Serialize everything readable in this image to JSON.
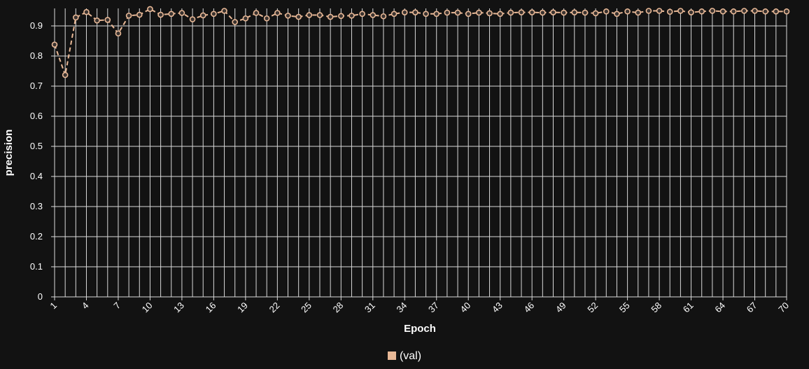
{
  "chart_data": {
    "type": "line",
    "xlabel": "Epoch",
    "ylabel": "precision",
    "x": [
      1,
      2,
      3,
      4,
      5,
      6,
      7,
      8,
      9,
      10,
      11,
      12,
      13,
      14,
      15,
      16,
      17,
      18,
      19,
      20,
      21,
      22,
      23,
      24,
      25,
      26,
      27,
      28,
      29,
      30,
      31,
      32,
      33,
      34,
      35,
      36,
      37,
      38,
      39,
      40,
      41,
      42,
      43,
      44,
      45,
      46,
      47,
      48,
      49,
      50,
      51,
      52,
      53,
      54,
      55,
      56,
      57,
      58,
      59,
      60,
      61,
      62,
      63,
      64,
      65,
      66,
      67,
      68,
      69,
      70
    ],
    "x_tick_labels": [
      "1",
      "4",
      "7",
      "10",
      "13",
      "16",
      "19",
      "22",
      "25",
      "28",
      "31",
      "34",
      "37",
      "40",
      "43",
      "46",
      "49",
      "52",
      "55",
      "58",
      "61",
      "64",
      "67",
      "70"
    ],
    "y_ticks": [
      "0",
      "0.1",
      "0.2",
      "0.3",
      "0.4",
      "0.5",
      "0.6",
      "0.7",
      "0.8",
      "0.9"
    ],
    "ylim": [
      0,
      0.96
    ],
    "grid": true,
    "legend_position": "bottom-center",
    "series": [
      {
        "name": "(val)",
        "color": "#e8b896",
        "line_style": "dashed",
        "values": [
          0.838,
          0.737,
          0.928,
          0.946,
          0.918,
          0.92,
          0.875,
          0.934,
          0.937,
          0.956,
          0.937,
          0.94,
          0.943,
          0.922,
          0.935,
          0.94,
          0.95,
          0.913,
          0.925,
          0.943,
          0.925,
          0.943,
          0.934,
          0.93,
          0.936,
          0.936,
          0.93,
          0.933,
          0.934,
          0.94,
          0.936,
          0.932,
          0.94,
          0.945,
          0.945,
          0.94,
          0.94,
          0.944,
          0.944,
          0.94,
          0.944,
          0.942,
          0.94,
          0.944,
          0.945,
          0.945,
          0.944,
          0.945,
          0.944,
          0.945,
          0.944,
          0.942,
          0.948,
          0.94,
          0.948,
          0.944,
          0.95,
          0.95,
          0.947,
          0.95,
          0.945,
          0.948,
          0.95,
          0.948,
          0.948,
          0.95,
          0.95,
          0.948,
          0.948,
          0.948
        ]
      }
    ]
  }
}
